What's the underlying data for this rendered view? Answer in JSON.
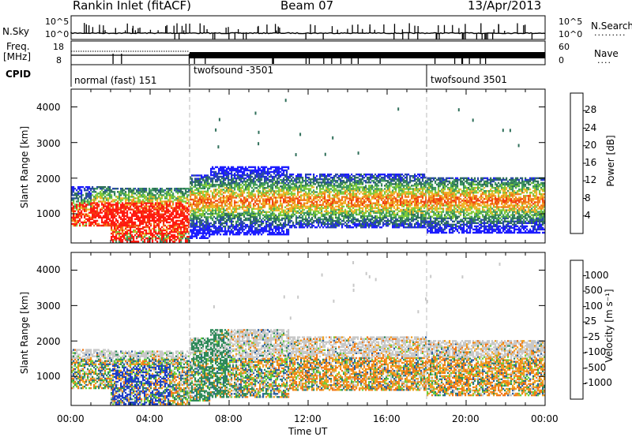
{
  "header": {
    "site": "Rankin Inlet (fitACF)",
    "beam": "Beam 07",
    "date": "13/Apr/2013"
  },
  "status_panels": {
    "nsky_label": "N.Sky",
    "nsky_ticks": [
      "10^5",
      "10^0"
    ],
    "nsearch_label": "N.Search",
    "nsearch_ticks": [
      "10^5",
      "10^0"
    ],
    "freq_label": "Freq.",
    "freq_unit": "[MHz]",
    "freq_ticks": [
      "18",
      "8"
    ],
    "nave_label": "Nave",
    "nave_ticks": [
      "60",
      "0"
    ],
    "cpid_label": "CPID",
    "cpid_segments": [
      {
        "label": "normal (fast) 151",
        "start_hour": 0
      },
      {
        "label": "twofsound -3501",
        "start_hour": 6
      },
      {
        "label": "twofsound 3501",
        "start_hour": 18
      }
    ]
  },
  "chart_data": [
    {
      "type": "heatmap",
      "name": "power",
      "xlabel": "",
      "ylabel": "Slant Range [km]",
      "x_ticks": [
        "00:00",
        "04:00",
        "08:00",
        "12:00",
        "16:00",
        "20:00",
        "00:00"
      ],
      "xlim_hours": [
        0,
        24
      ],
      "y_ticks": [
        1000,
        2000,
        3000,
        4000
      ],
      "ylim": [
        180,
        4500
      ],
      "colorbar_label": "Power [dB]",
      "colorbar_ticks": [
        "28",
        "24",
        "20",
        "16",
        "12",
        "8",
        "4"
      ],
      "colorbar_colors": [
        "#1d1dff",
        "#2a4aa8",
        "#2f6f5a",
        "#3f9a5f",
        "#7ecb3a",
        "#f0b42a",
        "#f07a1a",
        "#f04010",
        "#ff1a10"
      ]
    },
    {
      "type": "heatmap",
      "name": "velocity",
      "xlabel": "Time UT",
      "ylabel": "Slant Range [km]",
      "x_ticks": [
        "00:00",
        "04:00",
        "08:00",
        "12:00",
        "16:00",
        "20:00",
        "00:00"
      ],
      "xlim_hours": [
        0,
        24
      ],
      "y_ticks": [
        1000,
        2000,
        3000,
        4000
      ],
      "ylim": [
        180,
        4500
      ],
      "colorbar_label": "Velocity [m s⁻¹]",
      "colorbar_ticks": [
        "1000",
        "500",
        "100",
        "25",
        "-25",
        "-100",
        "-500",
        "-1000"
      ],
      "colorbar_colors": [
        "#1d3cc8",
        "#2c5fa0",
        "#2f8a5a",
        "#6ccf3a",
        "#c8c8c8",
        "#f0a020",
        "#f07818",
        "#f04a10",
        "#ff1a10"
      ]
    }
  ]
}
